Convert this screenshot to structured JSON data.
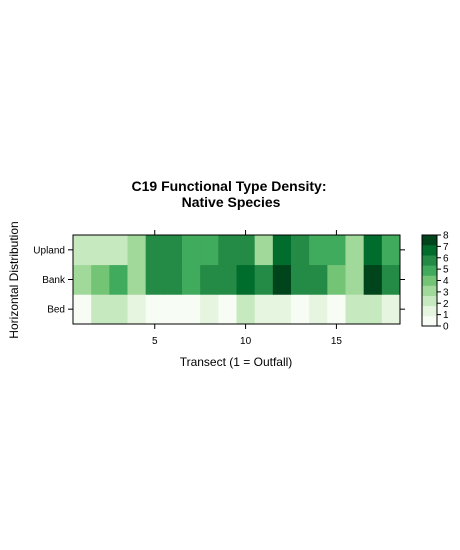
{
  "chart_data": {
    "type": "heatmap",
    "title_line1": "C19 Functional Type Density:",
    "title_line2": "Native Species",
    "xlabel": "Transect (1 = Outfall)",
    "ylabel": "Horizontal Distribution",
    "x": [
      1,
      2,
      3,
      4,
      5,
      6,
      7,
      8,
      9,
      10,
      11,
      12,
      13,
      14,
      15,
      16,
      17,
      18
    ],
    "xlim": [
      0.5,
      18.5
    ],
    "x_ticks": [
      5,
      10,
      15
    ],
    "rows": [
      "Bed",
      "Bank",
      "Upland"
    ],
    "values": {
      "Upland": [
        2,
        2,
        2,
        3,
        6,
        6,
        5,
        5,
        6,
        6,
        3,
        7,
        6,
        5,
        5,
        3,
        7,
        5
      ],
      "Bank": [
        3,
        4,
        5,
        3,
        6,
        6,
        5,
        6,
        6,
        7,
        6,
        8,
        6,
        6,
        4,
        3,
        8,
        6
      ],
      "Bed": [
        0,
        2,
        2,
        1,
        0,
        0,
        0,
        1,
        0,
        2,
        1,
        1,
        0,
        1,
        0,
        2,
        2,
        1
      ]
    },
    "colorbar": {
      "range": [
        0,
        8
      ],
      "ticks": [
        "0",
        "1",
        "2",
        "3",
        "4",
        "5",
        "6",
        "7",
        "8"
      ],
      "colors": [
        "#f7fcf5",
        "#e5f5e0",
        "#c7e9c0",
        "#a1d99b",
        "#74c476",
        "#41ab5d",
        "#238b45",
        "#006d2c",
        "#00441b"
      ]
    }
  }
}
